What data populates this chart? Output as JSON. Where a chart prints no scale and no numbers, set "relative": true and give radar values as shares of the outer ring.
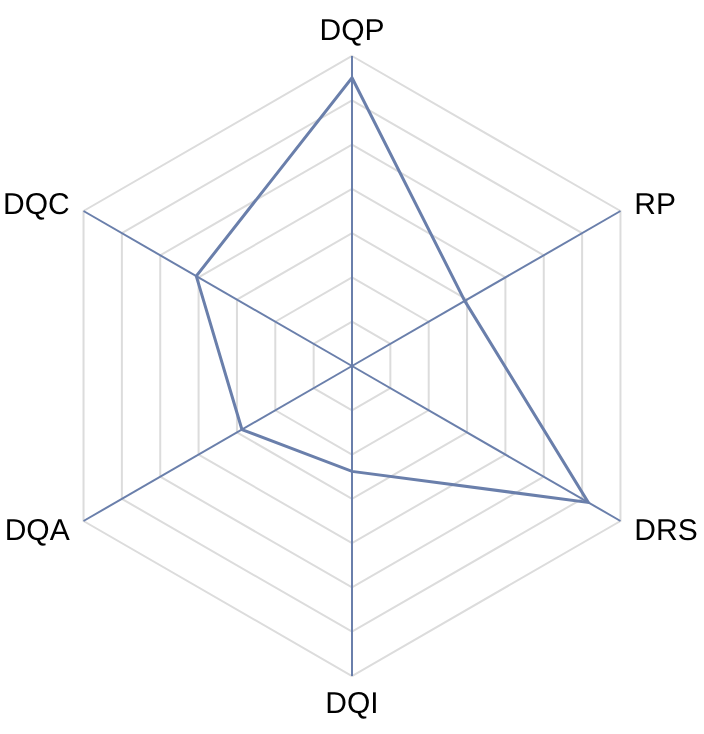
{
  "chart_data": {
    "type": "radar",
    "relative": true,
    "grid": true,
    "categories": [
      "DQP",
      "RP",
      "DRS",
      "DQI",
      "DQA",
      "DQC"
    ],
    "series": [
      {
        "color": "#6a7fab",
        "values": [
          0.93,
          0.42,
          0.88,
          0.34,
          0.41,
          0.58
        ]
      }
    ]
  }
}
